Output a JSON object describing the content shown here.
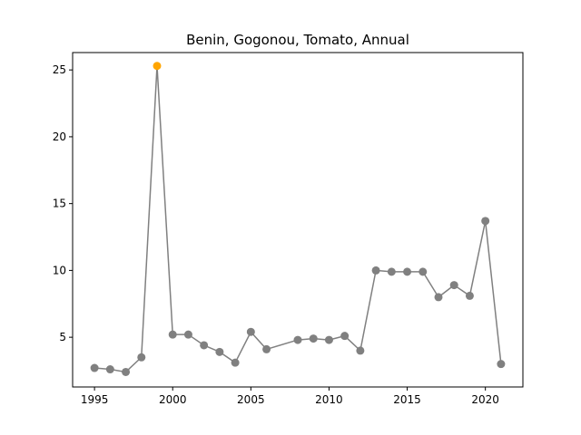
{
  "chart_data": {
    "type": "line",
    "title": "Benin, Gogonou, Tomato, Annual",
    "xlabel": "",
    "ylabel": "",
    "xlim": [
      1993.6,
      2022.4
    ],
    "ylim": [
      1.28,
      26.3
    ],
    "x_ticks": [
      1995,
      2000,
      2005,
      2010,
      2015,
      2020
    ],
    "y_ticks": [
      5,
      10,
      15,
      20,
      25
    ],
    "grid": false,
    "legend": "none",
    "colors": {
      "line": "#808080",
      "marker": "#808080",
      "highlight": "#ffa500"
    },
    "series": [
      {
        "x": [
          1995,
          1996,
          1997,
          1998,
          1999,
          2000,
          2001,
          2002,
          2003,
          2004,
          2005,
          2006,
          2008,
          2009,
          2010,
          2011,
          2012,
          2013,
          2014,
          2015,
          2016,
          2017,
          2018,
          2019,
          2020,
          2021
        ],
        "values": [
          2.7,
          2.6,
          2.4,
          3.5,
          25.3,
          5.2,
          5.2,
          4.4,
          3.9,
          3.1,
          5.4,
          4.1,
          4.8,
          4.9,
          4.8,
          5.1,
          4.0,
          10.0,
          9.9,
          9.9,
          9.9,
          8.0,
          8.9,
          8.1,
          13.7,
          3.0
        ],
        "highlight_x": 1999
      }
    ]
  }
}
